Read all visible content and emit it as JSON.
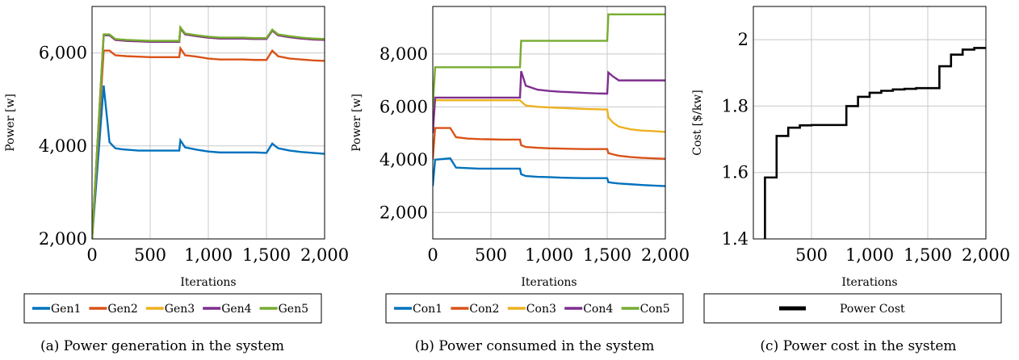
{
  "colors": {
    "series1": "#0072bd",
    "series2": "#d95319",
    "series3": "#edb120",
    "series4": "#7e2f8e",
    "series5": "#77ac30",
    "cost": "#000000",
    "grid": "#c8c8c8"
  },
  "chart_data": [
    {
      "type": "line",
      "title": "",
      "caption": "(a) Power generation in the system",
      "xlabel": "Iterations",
      "ylabel": "Power [w]",
      "xlim": [
        0,
        2000
      ],
      "ylim": [
        2000,
        7000
      ],
      "xticks": [
        0,
        500,
        1000,
        1500,
        2000
      ],
      "xtick_labels": [
        "0",
        "500",
        "1,000",
        "1,500",
        "2,000"
      ],
      "yticks": [
        2000,
        4000,
        6000
      ],
      "ytick_labels": [
        "2,000",
        "4,000",
        "6,000"
      ],
      "grid": true,
      "legend_placement": "below",
      "series": [
        {
          "name": "Gen1",
          "color_key": "series1",
          "x": [
            0,
            100,
            150,
            200,
            250,
            300,
            400,
            500,
            600,
            700,
            750,
            760,
            800,
            900,
            1000,
            1100,
            1200,
            1300,
            1400,
            1500,
            1550,
            1600,
            1700,
            1800,
            1900,
            2000
          ],
          "y": [
            2000,
            5300,
            4080,
            3950,
            3930,
            3920,
            3900,
            3900,
            3900,
            3900,
            3900,
            4120,
            3970,
            3920,
            3880,
            3860,
            3860,
            3860,
            3860,
            3850,
            4050,
            3950,
            3900,
            3870,
            3850,
            3830
          ]
        },
        {
          "name": "Gen2",
          "color_key": "series2",
          "x": [
            0,
            100,
            150,
            200,
            250,
            300,
            400,
            500,
            600,
            700,
            750,
            760,
            800,
            900,
            1000,
            1100,
            1200,
            1300,
            1400,
            1500,
            1550,
            1600,
            1700,
            1800,
            1900,
            2000
          ],
          "y": [
            2000,
            6050,
            6050,
            5950,
            5940,
            5930,
            5920,
            5910,
            5910,
            5910,
            5910,
            6100,
            5950,
            5920,
            5880,
            5860,
            5860,
            5860,
            5850,
            5850,
            6050,
            5930,
            5880,
            5860,
            5840,
            5830
          ]
        },
        {
          "name": "Gen3",
          "color_key": "series3",
          "x": [
            0,
            100,
            150,
            200,
            250,
            300,
            400,
            500,
            600,
            700,
            750,
            760,
            800,
            900,
            1000,
            1100,
            1200,
            1300,
            1400,
            1500,
            1550,
            1600,
            1700,
            1800,
            1900,
            2000
          ],
          "y": [
            2000,
            6380,
            6380,
            6280,
            6270,
            6260,
            6250,
            6240,
            6240,
            6240,
            6240,
            6530,
            6400,
            6360,
            6330,
            6310,
            6310,
            6310,
            6300,
            6300,
            6480,
            6380,
            6340,
            6310,
            6290,
            6280
          ]
        },
        {
          "name": "Gen4",
          "color_key": "series4",
          "x": [
            0,
            100,
            150,
            200,
            250,
            300,
            400,
            500,
            600,
            700,
            750,
            760,
            800,
            900,
            1000,
            1100,
            1200,
            1300,
            1400,
            1500,
            1550,
            1600,
            1700,
            1800,
            1900,
            2000
          ],
          "y": [
            2000,
            6380,
            6380,
            6280,
            6270,
            6260,
            6250,
            6240,
            6240,
            6240,
            6240,
            6530,
            6400,
            6360,
            6330,
            6310,
            6310,
            6310,
            6300,
            6300,
            6480,
            6380,
            6340,
            6310,
            6290,
            6280
          ]
        },
        {
          "name": "Gen5",
          "color_key": "series5",
          "x": [
            0,
            100,
            150,
            200,
            250,
            300,
            400,
            500,
            600,
            700,
            750,
            760,
            800,
            900,
            1000,
            1100,
            1200,
            1300,
            1400,
            1500,
            1550,
            1600,
            1700,
            1800,
            1900,
            2000
          ],
          "y": [
            2000,
            6400,
            6400,
            6300,
            6290,
            6280,
            6270,
            6260,
            6260,
            6260,
            6260,
            6550,
            6420,
            6380,
            6350,
            6330,
            6330,
            6330,
            6320,
            6320,
            6500,
            6400,
            6360,
            6330,
            6310,
            6300
          ]
        }
      ]
    },
    {
      "type": "line",
      "title": "",
      "caption": "(b) Power consumed in the system",
      "xlabel": "Iterations",
      "ylabel": "Power [w]",
      "xlim": [
        0,
        2000
      ],
      "ylim": [
        1000,
        9800
      ],
      "xticks": [
        0,
        500,
        1000,
        1500,
        2000
      ],
      "xtick_labels": [
        "0",
        "500",
        "1,000",
        "1,500",
        "2,000"
      ],
      "yticks": [
        2000,
        4000,
        6000,
        8000
      ],
      "ytick_labels": [
        "2,000",
        "4,000",
        "6,000",
        "8,000"
      ],
      "grid": true,
      "legend_placement": "below",
      "series": [
        {
          "name": "Con1",
          "color_key": "series1",
          "x": [
            0,
            20,
            150,
            200,
            300,
            400,
            500,
            600,
            700,
            750,
            760,
            800,
            900,
            1000,
            1100,
            1200,
            1300,
            1400,
            1500,
            1510,
            1550,
            1600,
            1700,
            1800,
            1900,
            2000
          ],
          "y": [
            3000,
            4000,
            4050,
            3700,
            3680,
            3660,
            3660,
            3660,
            3660,
            3660,
            3450,
            3380,
            3350,
            3340,
            3320,
            3310,
            3300,
            3300,
            3300,
            3150,
            3120,
            3100,
            3070,
            3040,
            3020,
            3000
          ]
        },
        {
          "name": "Con2",
          "color_key": "series2",
          "x": [
            0,
            20,
            150,
            200,
            300,
            400,
            500,
            600,
            700,
            750,
            760,
            800,
            900,
            1000,
            1100,
            1200,
            1300,
            1400,
            1500,
            1510,
            1550,
            1600,
            1700,
            1800,
            1900,
            2000
          ],
          "y": [
            4000,
            5200,
            5200,
            4850,
            4800,
            4780,
            4770,
            4760,
            4760,
            4760,
            4550,
            4480,
            4450,
            4430,
            4420,
            4410,
            4400,
            4400,
            4400,
            4250,
            4200,
            4150,
            4100,
            4070,
            4050,
            4030
          ]
        },
        {
          "name": "Con3",
          "color_key": "series3",
          "x": [
            0,
            20,
            150,
            200,
            300,
            400,
            500,
            600,
            700,
            750,
            760,
            800,
            900,
            1000,
            1100,
            1200,
            1300,
            1400,
            1500,
            1510,
            1550,
            1600,
            1700,
            1800,
            1900,
            2000
          ],
          "y": [
            5000,
            6250,
            6250,
            6250,
            6250,
            6250,
            6250,
            6250,
            6250,
            6250,
            6200,
            6050,
            6000,
            5980,
            5960,
            5940,
            5920,
            5910,
            5900,
            5600,
            5400,
            5250,
            5150,
            5100,
            5080,
            5050
          ]
        },
        {
          "name": "Con4",
          "color_key": "series4",
          "x": [
            0,
            20,
            150,
            200,
            300,
            400,
            500,
            600,
            700,
            750,
            760,
            800,
            900,
            1000,
            1100,
            1200,
            1300,
            1400,
            1500,
            1510,
            1550,
            1600,
            1700,
            1800,
            1900,
            2000
          ],
          "y": [
            5000,
            6350,
            6350,
            6350,
            6350,
            6350,
            6350,
            6350,
            6350,
            6350,
            7350,
            6800,
            6650,
            6600,
            6570,
            6550,
            6530,
            6510,
            6500,
            7300,
            7150,
            7000,
            7000,
            7000,
            7000,
            7000
          ]
        },
        {
          "name": "Con5",
          "color_key": "series5",
          "x": [
            0,
            20,
            750,
            760,
            1500,
            1510,
            2000
          ],
          "y": [
            6000,
            7500,
            7500,
            8500,
            8500,
            9500,
            9500
          ]
        }
      ]
    },
    {
      "type": "line",
      "title": "",
      "caption": "(c) Power cost in the system",
      "xlabel": "Iterations",
      "ylabel": "Cost [$/kw]",
      "xlim": [
        0,
        2000
      ],
      "ylim": [
        1.4,
        2.1
      ],
      "xticks": [
        500,
        1000,
        1500,
        2000
      ],
      "xtick_labels": [
        "500",
        "1,000",
        "1,500",
        "2,000"
      ],
      "yticks": [
        1.4,
        1.6,
        1.8,
        2.0
      ],
      "ytick_labels": [
        "1.4",
        "1.6",
        "1.8",
        "2"
      ],
      "grid": true,
      "legend_placement": "below",
      "step": true,
      "series": [
        {
          "name": "Power Cost",
          "color_key": "cost",
          "x": [
            100,
            200,
            300,
            400,
            500,
            600,
            700,
            800,
            900,
            1000,
            1100,
            1200,
            1300,
            1400,
            1500,
            1600,
            1700,
            1800,
            1900,
            2000
          ],
          "y": [
            1.585,
            1.71,
            1.735,
            1.742,
            1.743,
            1.743,
            1.743,
            1.8,
            1.828,
            1.84,
            1.846,
            1.85,
            1.852,
            1.854,
            1.854,
            1.92,
            1.955,
            1.97,
            1.975,
            1.978
          ]
        }
      ]
    }
  ]
}
